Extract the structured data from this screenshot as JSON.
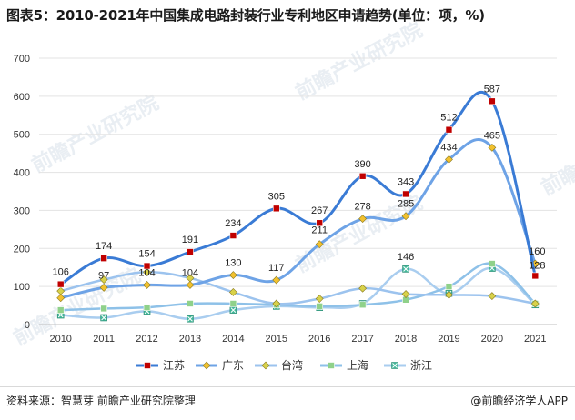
{
  "title": "图表5：2010-2021年中国集成电路封装行业专利地区申请趋势(单位：项，%)",
  "source": "资料来源：智慧芽 前瞻产业研究院整理",
  "brand": "@前瞻经济学人APP",
  "watermark": "前瞻产业研究院",
  "chart_data": {
    "type": "line",
    "title": "图表5：2010-2021年中国集成电路封装行业专利地区申请趋势(单位：项，%)",
    "xlabel": "",
    "ylabel": "",
    "ylim": [
      0,
      700
    ],
    "yticks": [
      0,
      100,
      200,
      300,
      400,
      500,
      600,
      700
    ],
    "categories": [
      "2010",
      "2011",
      "2012",
      "2013",
      "2014",
      "2015",
      "2016",
      "2017",
      "2018",
      "2019",
      "2020",
      "2021"
    ],
    "legend_position": "bottom",
    "series": [
      {
        "name": "江苏",
        "color": "#3a7bd5",
        "marker": "square",
        "marker_color": "#c00000",
        "labeled": true,
        "values": [
          106,
          174,
          154,
          191,
          234,
          305,
          267,
          390,
          343,
          512,
          587,
          128
        ]
      },
      {
        "name": "广东",
        "color": "#6ea3e6",
        "marker": "diamond",
        "marker_color": "#f2c12e",
        "labeled": true,
        "values": [
          70,
          97,
          104,
          104,
          130,
          117,
          211,
          278,
          285,
          434,
          465,
          160
        ]
      },
      {
        "name": "台湾",
        "color": "#9cc3ee",
        "marker": "diamond",
        "marker_color": "#d8d24a",
        "labeled": false,
        "values": [
          88,
          118,
          138,
          122,
          85,
          55,
          68,
          95,
          80,
          78,
          75,
          55
        ]
      },
      {
        "name": "上海",
        "color": "#8ec1e8",
        "marker": "square",
        "marker_color": "#8fd18a",
        "labeled": false,
        "values": [
          38,
          42,
          45,
          55,
          55,
          52,
          48,
          52,
          65,
          100,
          160,
          55
        ]
      },
      {
        "name": "浙江",
        "color": "#a9cdef",
        "marker": "xsquare",
        "marker_color": "#43b89a",
        "labeled": false,
        "values": [
          25,
          18,
          35,
          15,
          38,
          48,
          45,
          55,
          146,
          82,
          148,
          52
        ]
      }
    ],
    "annotations": [
      {
        "series": "浙江",
        "index": 8,
        "text": "146"
      }
    ]
  }
}
